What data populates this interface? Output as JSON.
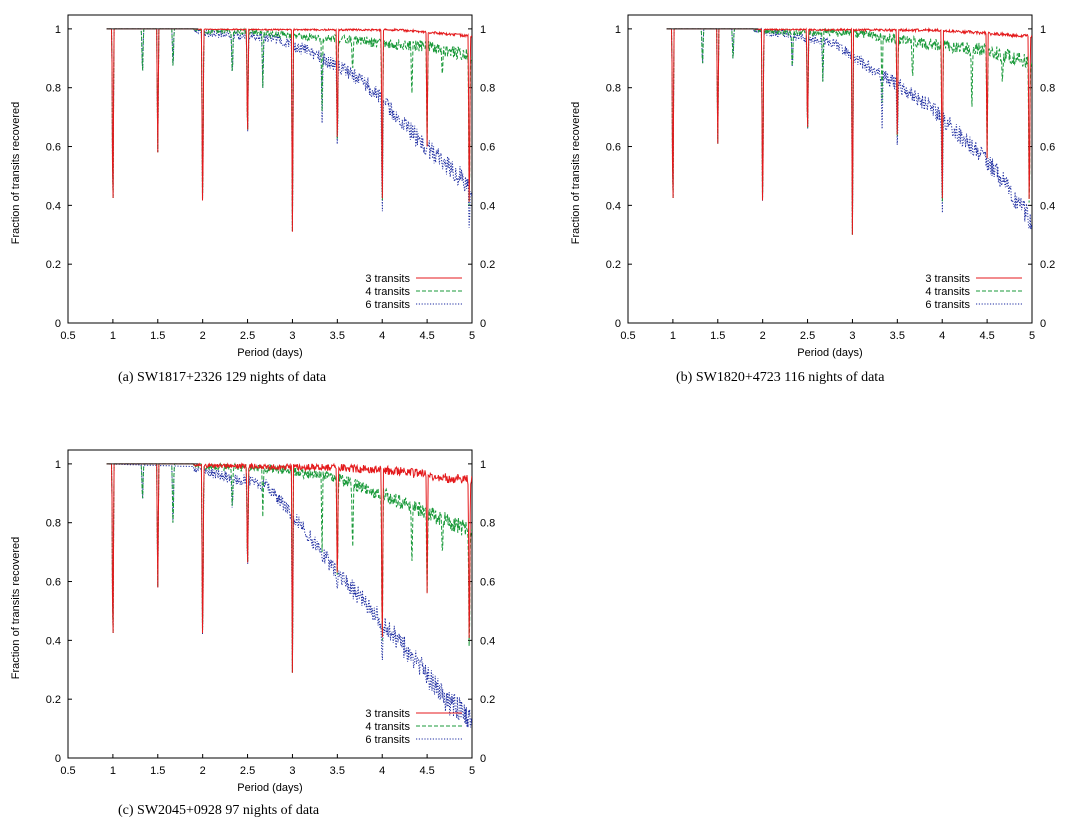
{
  "figure": {
    "captions": [
      "(a)  SW1817+2326 129 nights of data",
      "(b)  SW1820+4723 116 nights of data",
      "(c)  SW2045+0928 97 nights of data"
    ]
  },
  "chart_data": [
    {
      "type": "line",
      "panel": "a",
      "xlabel": "Period (days)",
      "ylabel": "Fraction of transits recovered",
      "xlim": [
        0.5,
        5
      ],
      "ylim": [
        0,
        1.02
      ],
      "xticks": [
        "0.5",
        "1",
        "1.5",
        "2",
        "2.5",
        "3",
        "3.5",
        "4",
        "4.5",
        "5"
      ],
      "yticks_left": [
        "0",
        "0.2",
        "0.4",
        "0.6",
        "0.8",
        "1"
      ],
      "yticks_right": [
        "0",
        "0.2",
        "0.4",
        "0.6",
        "0.8",
        "1"
      ],
      "legend_position": "bottom-right",
      "series": [
        {
          "name": "3 transits",
          "color": "#e41a1c",
          "style": "solid",
          "baseline": 1.0,
          "noise": 0.006,
          "trend": [
            [
              0.9,
              1.0
            ],
            [
              4.2,
              1.0
            ],
            [
              5.0,
              0.98
            ]
          ],
          "dips": [
            [
              1.0,
              0.31
            ],
            [
              1.5,
              0.58
            ],
            [
              2.0,
              0.3
            ],
            [
              2.5,
              0.59
            ],
            [
              3.0,
              0.31
            ],
            [
              3.5,
              0.56
            ],
            [
              4.0,
              0.31
            ],
            [
              4.5,
              0.6
            ],
            [
              4.97,
              0.3
            ]
          ]
        },
        {
          "name": "4 transits",
          "color": "#1a9a3a",
          "style": "dashed",
          "baseline": 1.0,
          "noise": 0.03,
          "trend": [
            [
              0.9,
              1.0
            ],
            [
              2.5,
              1.0
            ],
            [
              3.5,
              0.98
            ],
            [
              4.5,
              0.96
            ],
            [
              5.0,
              0.93
            ]
          ],
          "dips": [
            [
              1.0,
              0.31
            ],
            [
              1.33,
              0.83
            ],
            [
              1.5,
              0.58
            ],
            [
              1.67,
              0.85
            ],
            [
              2.0,
              0.3
            ],
            [
              2.33,
              0.83
            ],
            [
              2.5,
              0.59
            ],
            [
              2.67,
              0.8
            ],
            [
              3.0,
              0.31
            ],
            [
              3.33,
              0.72
            ],
            [
              3.5,
              0.56
            ],
            [
              3.67,
              0.85
            ],
            [
              4.0,
              0.31
            ],
            [
              4.33,
              0.75
            ],
            [
              4.5,
              0.6
            ],
            [
              4.67,
              0.83
            ],
            [
              4.97,
              0.3
            ]
          ]
        },
        {
          "name": "6 transits",
          "color": "#1b2aa0",
          "style": "dotted",
          "baseline": 1.0,
          "noise": 0.05,
          "trend": [
            [
              0.9,
              1.0
            ],
            [
              2.0,
              1.0
            ],
            [
              2.8,
              0.99
            ],
            [
              3.3,
              0.93
            ],
            [
              3.8,
              0.85
            ],
            [
              4.2,
              0.72
            ],
            [
              4.6,
              0.6
            ],
            [
              5.0,
              0.5
            ]
          ],
          "dips": [
            [
              1.0,
              0.31
            ],
            [
              1.33,
              0.83
            ],
            [
              1.5,
              0.58
            ],
            [
              1.67,
              0.85
            ],
            [
              2.0,
              0.3
            ],
            [
              2.33,
              0.83
            ],
            [
              2.5,
              0.59
            ],
            [
              2.67,
              0.8
            ],
            [
              3.0,
              0.31
            ],
            [
              3.33,
              0.68
            ],
            [
              3.5,
              0.56
            ],
            [
              4.0,
              0.31
            ],
            [
              4.5,
              0.6
            ],
            [
              4.97,
              0.3
            ]
          ]
        }
      ]
    },
    {
      "type": "line",
      "panel": "b",
      "xlabel": "Period (days)",
      "ylabel": "Fraction of transits recovered",
      "xlim": [
        0.5,
        5
      ],
      "ylim": [
        0,
        1.02
      ],
      "xticks": [
        "0.5",
        "1",
        "1.5",
        "2",
        "2.5",
        "3",
        "3.5",
        "4",
        "4.5",
        "5"
      ],
      "yticks_left": [
        "0",
        "0.2",
        "0.4",
        "0.6",
        "0.8",
        "1"
      ],
      "yticks_right": [
        "0",
        "0.2",
        "0.4",
        "0.6",
        "0.8",
        "1"
      ],
      "legend_position": "bottom-right",
      "series": [
        {
          "name": "3 transits",
          "color": "#e41a1c",
          "style": "solid",
          "baseline": 1.0,
          "noise": 0.008,
          "trend": [
            [
              0.9,
              1.0
            ],
            [
              4.0,
              1.0
            ],
            [
              5.0,
              0.98
            ]
          ],
          "dips": [
            [
              1.0,
              0.31
            ],
            [
              1.5,
              0.61
            ],
            [
              2.0,
              0.3
            ],
            [
              2.5,
              0.6
            ],
            [
              3.0,
              0.3
            ],
            [
              3.5,
              0.57
            ],
            [
              4.0,
              0.31
            ],
            [
              4.5,
              0.56
            ],
            [
              4.97,
              0.31
            ]
          ]
        },
        {
          "name": "4 transits",
          "color": "#1a9a3a",
          "style": "dashed",
          "baseline": 1.0,
          "noise": 0.035,
          "trend": [
            [
              0.9,
              1.0
            ],
            [
              3.0,
              1.0
            ],
            [
              3.8,
              0.97
            ],
            [
              4.5,
              0.95
            ],
            [
              5.0,
              0.91
            ]
          ],
          "dips": [
            [
              1.0,
              0.31
            ],
            [
              1.33,
              0.86
            ],
            [
              1.5,
              0.61
            ],
            [
              1.67,
              0.88
            ],
            [
              2.0,
              0.3
            ],
            [
              2.33,
              0.85
            ],
            [
              2.5,
              0.6
            ],
            [
              2.67,
              0.82
            ],
            [
              3.0,
              0.3
            ],
            [
              3.33,
              0.75
            ],
            [
              3.5,
              0.57
            ],
            [
              3.67,
              0.82
            ],
            [
              4.0,
              0.31
            ],
            [
              4.33,
              0.7
            ],
            [
              4.5,
              0.56
            ],
            [
              4.67,
              0.8
            ],
            [
              4.97,
              0.31
            ]
          ]
        },
        {
          "name": "6 transits",
          "color": "#1b2aa0",
          "style": "dotted",
          "baseline": 1.0,
          "noise": 0.05,
          "trend": [
            [
              0.9,
              1.0
            ],
            [
              2.2,
              1.0
            ],
            [
              2.8,
              0.97
            ],
            [
              3.3,
              0.87
            ],
            [
              3.8,
              0.78
            ],
            [
              4.2,
              0.67
            ],
            [
              4.6,
              0.55
            ],
            [
              5.0,
              0.38
            ]
          ],
          "dips": [
            [
              1.0,
              0.31
            ],
            [
              1.33,
              0.86
            ],
            [
              1.5,
              0.61
            ],
            [
              1.67,
              0.88
            ],
            [
              2.0,
              0.3
            ],
            [
              2.33,
              0.85
            ],
            [
              2.5,
              0.6
            ],
            [
              2.67,
              0.82
            ],
            [
              3.0,
              0.3
            ],
            [
              3.33,
              0.66
            ],
            [
              3.5,
              0.57
            ],
            [
              4.0,
              0.31
            ],
            [
              4.5,
              0.56
            ],
            [
              4.97,
              0.31
            ]
          ]
        }
      ]
    },
    {
      "type": "line",
      "panel": "c",
      "xlabel": "Period (days)",
      "ylabel": "Fraction of transits recovered",
      "xlim": [
        0.5,
        5
      ],
      "ylim": [
        0,
        1.02
      ],
      "xticks": [
        "0.5",
        "1",
        "1.5",
        "2",
        "2.5",
        "3",
        "3.5",
        "4",
        "4.5",
        "5"
      ],
      "yticks_left": [
        "0",
        "0.2",
        "0.4",
        "0.6",
        "0.8",
        "1"
      ],
      "yticks_right": [
        "0",
        "0.2",
        "0.4",
        "0.6",
        "0.8",
        "1"
      ],
      "legend_position": "bottom-right",
      "series": [
        {
          "name": "3 transits",
          "color": "#e41a1c",
          "style": "solid",
          "baseline": 1.0,
          "noise": 0.025,
          "trend": [
            [
              0.9,
              1.0
            ],
            [
              3.5,
              1.0
            ],
            [
              4.2,
              0.99
            ],
            [
              5.0,
              0.96
            ]
          ],
          "dips": [
            [
              1.0,
              0.31
            ],
            [
              1.5,
              0.58
            ],
            [
              2.0,
              0.31
            ],
            [
              2.5,
              0.6
            ],
            [
              3.0,
              0.29
            ],
            [
              3.5,
              0.56
            ],
            [
              4.0,
              0.3
            ],
            [
              4.5,
              0.56
            ],
            [
              4.97,
              0.3
            ]
          ]
        },
        {
          "name": "4 transits",
          "color": "#1a9a3a",
          "style": "dashed",
          "baseline": 1.0,
          "noise": 0.04,
          "trend": [
            [
              0.9,
              1.0
            ],
            [
              2.8,
              1.0
            ],
            [
              3.5,
              0.97
            ],
            [
              4.0,
              0.92
            ],
            [
              4.5,
              0.86
            ],
            [
              5.0,
              0.8
            ]
          ],
          "dips": [
            [
              1.0,
              0.31
            ],
            [
              1.33,
              0.86
            ],
            [
              1.5,
              0.58
            ],
            [
              1.67,
              0.76
            ],
            [
              2.0,
              0.31
            ],
            [
              2.33,
              0.83
            ],
            [
              2.5,
              0.6
            ],
            [
              2.67,
              0.82
            ],
            [
              3.0,
              0.29
            ],
            [
              3.33,
              0.7
            ],
            [
              3.5,
              0.56
            ],
            [
              3.67,
              0.68
            ],
            [
              4.0,
              0.3
            ],
            [
              4.33,
              0.63
            ],
            [
              4.5,
              0.56
            ],
            [
              4.67,
              0.68
            ],
            [
              4.97,
              0.3
            ]
          ]
        },
        {
          "name": "6 transits",
          "color": "#1b2aa0",
          "style": "dotted",
          "baseline": 1.0,
          "noise": 0.06,
          "trend": [
            [
              0.9,
              1.0
            ],
            [
              2.0,
              0.99
            ],
            [
              2.7,
              0.95
            ],
            [
              3.0,
              0.85
            ],
            [
              3.5,
              0.66
            ],
            [
              4.0,
              0.5
            ],
            [
              4.4,
              0.36
            ],
            [
              4.7,
              0.24
            ],
            [
              5.0,
              0.18
            ]
          ],
          "dips": [
            [
              1.0,
              0.31
            ],
            [
              1.33,
              0.86
            ],
            [
              1.5,
              0.58
            ],
            [
              1.67,
              0.76
            ],
            [
              2.0,
              0.31
            ],
            [
              2.33,
              0.83
            ],
            [
              2.5,
              0.6
            ],
            [
              3.0,
              0.29
            ],
            [
              3.5,
              0.56
            ],
            [
              4.0,
              0.3
            ]
          ]
        }
      ]
    }
  ]
}
